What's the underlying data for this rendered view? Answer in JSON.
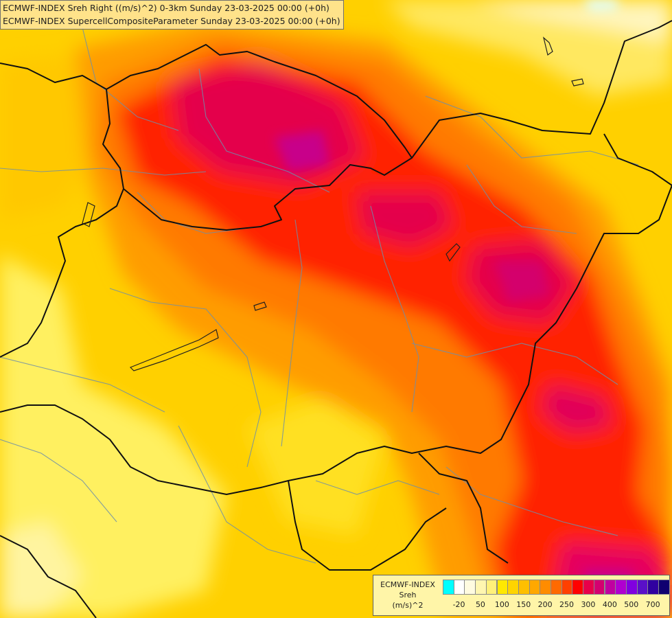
{
  "title": {
    "line1": "ECMWF-INDEX Sreh Right ((m/s)^2) 0-3km Sunday 23-03-2025 00:00 (+0h)",
    "line2": "ECMWF-INDEX SupercellCompositeParameter Sunday 23-03-2025 00:00 (+0h)"
  },
  "legend": {
    "model": "ECMWF-INDEX",
    "parameter": "Sreh",
    "unit": "(m/s)^2",
    "colors": [
      "#00ffff",
      "#ffffff",
      "#fffbe0",
      "#fff6b0",
      "#fff07a",
      "#ffe800",
      "#ffd400",
      "#ffbf00",
      "#ffa800",
      "#ff8c00",
      "#ff6a00",
      "#ff4000",
      "#ff0000",
      "#e8004a",
      "#d40070",
      "#c000a0",
      "#b000d0",
      "#8000e0",
      "#5a10c8",
      "#3000a0",
      "#100070"
    ],
    "ticks": [
      "-20",
      "50",
      "100",
      "150",
      "200",
      "250",
      "300",
      "400",
      "500",
      "700"
    ]
  }
}
